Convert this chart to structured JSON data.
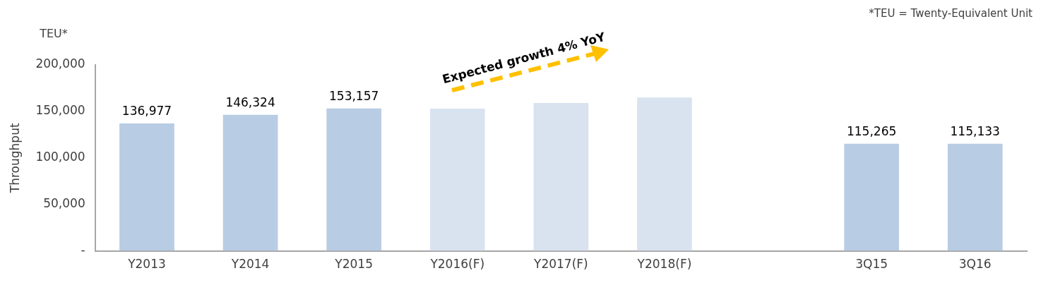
{
  "chart_data": {
    "type": "bar",
    "ylabel": "Throughput",
    "categories": [
      "Y2013",
      "Y2014",
      "Y2015",
      "Y2016(F)",
      "Y2017(F)",
      "Y2018(F)",
      null,
      "3Q15",
      "3Q16"
    ],
    "values": [
      136977,
      146324,
      153157,
      153000,
      159000,
      165000,
      null,
      115265,
      115133
    ],
    "value_labels": [
      "136,977",
      "146,324",
      "153,157",
      null,
      null,
      null,
      null,
      "115,265",
      "115,133"
    ],
    "colors": [
      "#b8cce4",
      "#b8cce4",
      "#b8cce4",
      "#d9e3f0",
      "#d9e3f0",
      "#d9e3f0",
      "#b8cce4",
      "#b8cce4",
      "#b8cce4"
    ],
    "ylim": [
      0,
      200000
    ],
    "yticks": [
      {
        "value": 0,
        "label": "-"
      },
      {
        "value": 50000,
        "label": "50,000"
      },
      {
        "value": 100000,
        "label": "100,000"
      },
      {
        "value": 150000,
        "label": "150,000"
      },
      {
        "value": 200000,
        "label": "200,000"
      }
    ],
    "grid": false,
    "legend": false,
    "annotations": [
      "TEU*",
      "*TEU = Twenty-Equivalent Unit",
      "Expected growth 4% YoY"
    ]
  }
}
